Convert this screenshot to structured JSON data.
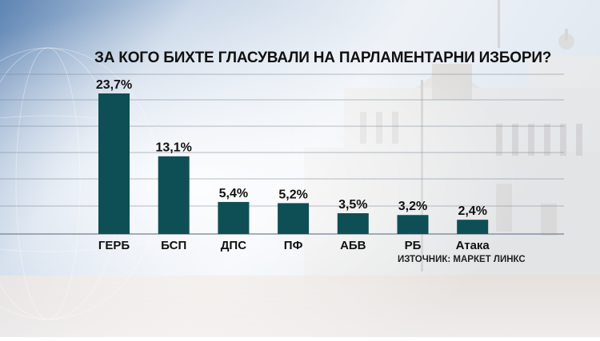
{
  "title": "ЗА КОГО БИХТЕ ГЛАСУВАЛИ НА ПАРЛАМЕНТАРНИ ИЗБОРИ?",
  "source": "ИЗТОЧНИК: МАРКЕТ ЛИНКС",
  "colors": {
    "bar": "#0e4f55",
    "gridline": "#7b8a98",
    "text": "#111111"
  },
  "chart_data": {
    "type": "bar",
    "title": "ЗА КОГО БИХТЕ ГЛАСУВАЛИ НА ПАРЛАМЕНТАРНИ ИЗБОРИ?",
    "categories": [
      "ГЕРБ",
      "БСП",
      "ДПС",
      "ПФ",
      "АБВ",
      "РБ",
      "Атака"
    ],
    "values": [
      23.7,
      13.1,
      5.4,
      5.2,
      3.5,
      3.2,
      2.4
    ],
    "data_labels": [
      "23,7%",
      "13,1%",
      "5,4%",
      "5,2%",
      "3,5%",
      "3,2%",
      "2,4%"
    ],
    "unit": "%",
    "ylim": [
      0,
      23.7
    ],
    "grid": true,
    "legend": "none"
  }
}
